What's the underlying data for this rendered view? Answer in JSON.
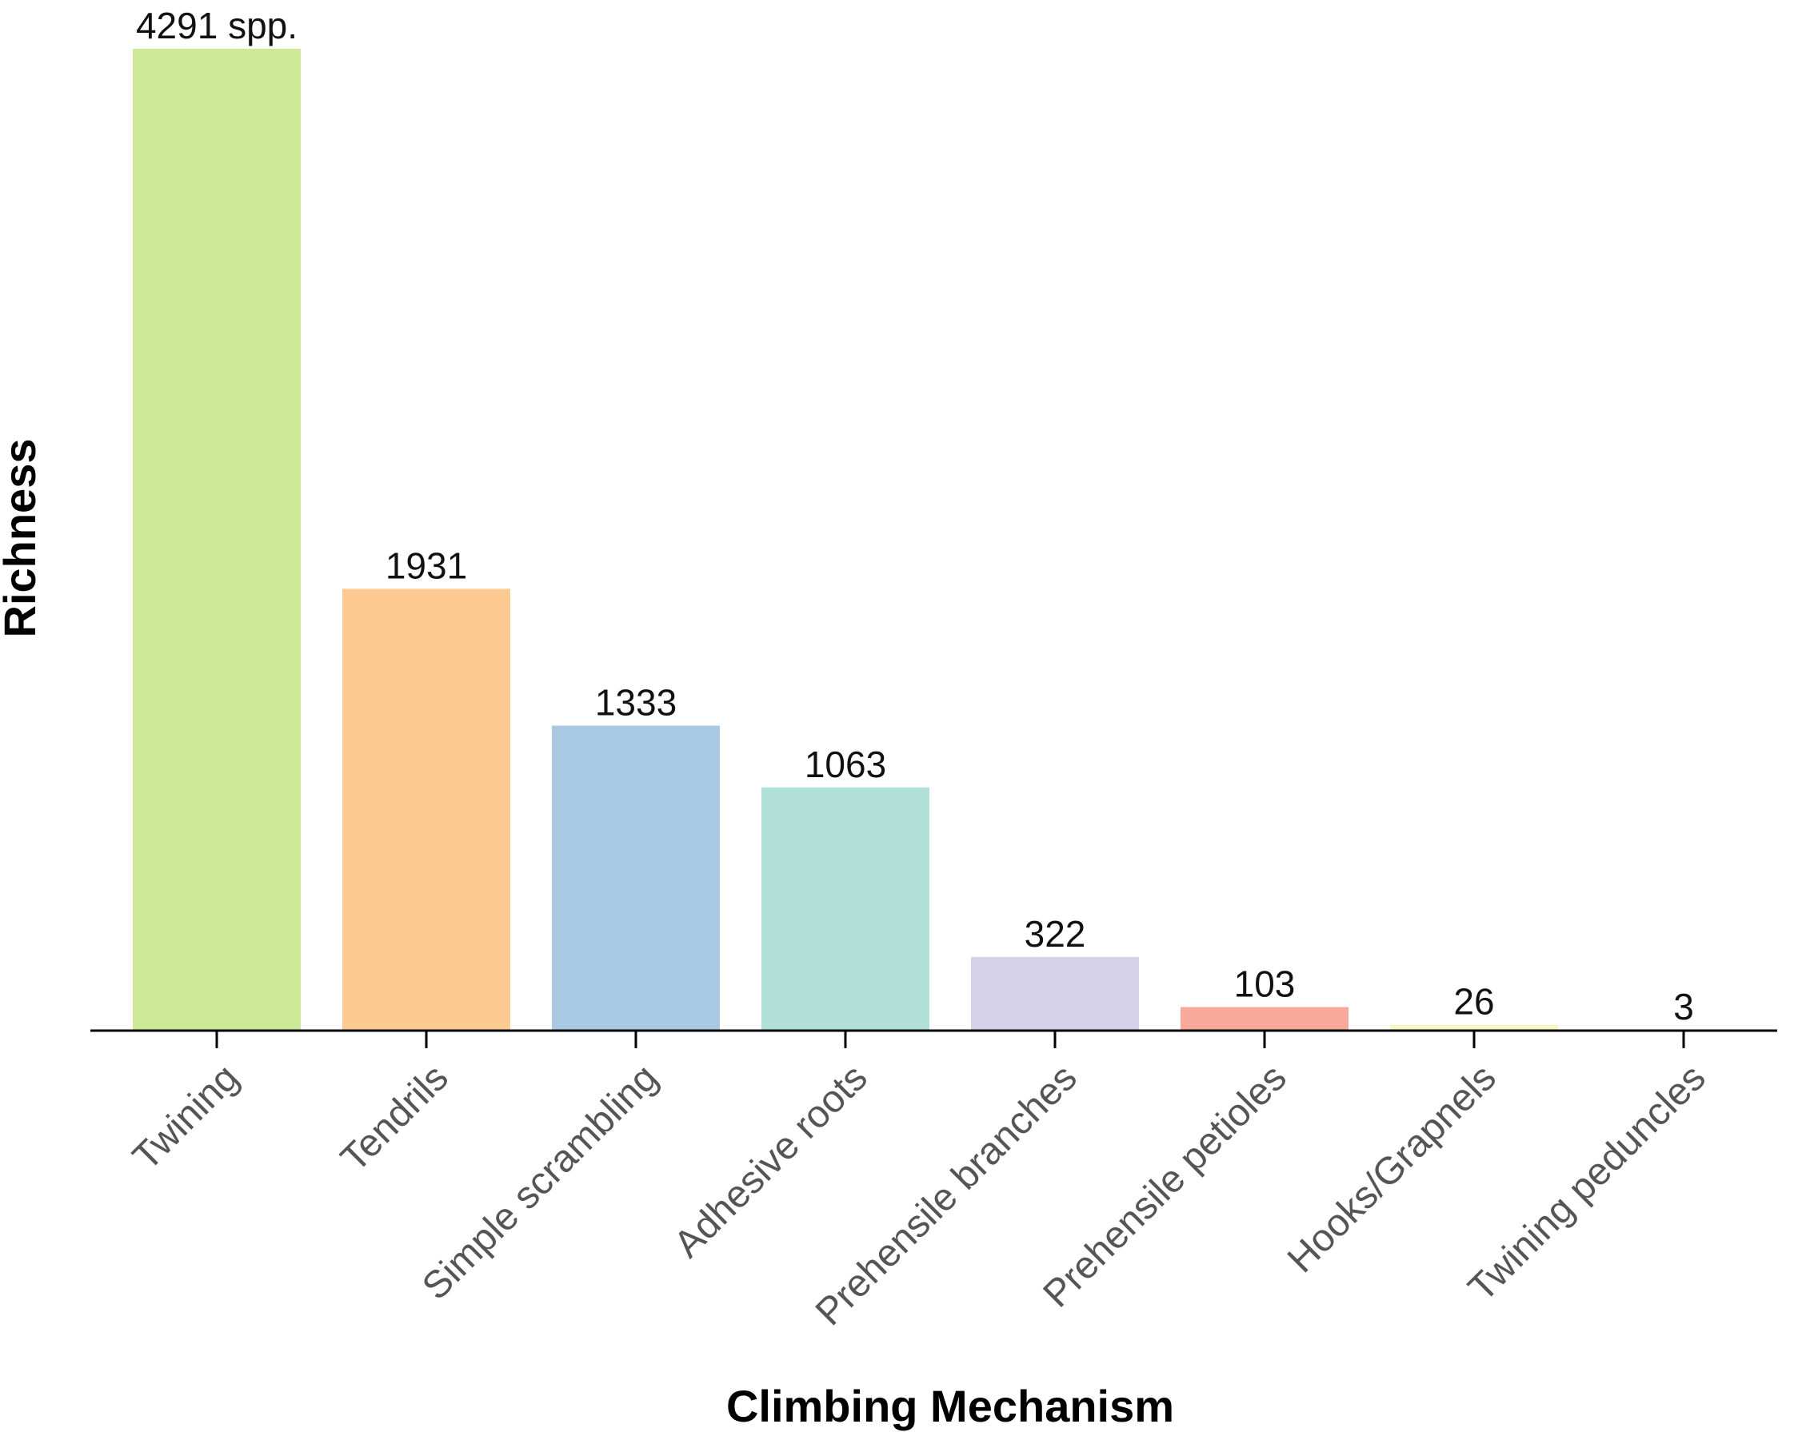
{
  "chart_data": {
    "type": "bar",
    "title": "",
    "xlabel": "Climbing Mechanism",
    "ylabel": "Richness",
    "categories": [
      "Twining",
      "Tendrils",
      "Simple scrambling",
      "Adhesive roots",
      "Prehensile branches",
      "Prehensile petioles",
      "Hooks/Grapnels",
      "Twining peduncles"
    ],
    "values": [
      4291,
      1931,
      1333,
      1063,
      322,
      103,
      26,
      3
    ],
    "value_labels": [
      "4291 spp.",
      "1931",
      "1333",
      "1063",
      "322",
      "103",
      "26",
      "3"
    ],
    "colors": [
      "#cde896",
      "#fdcb92",
      "#a9c9e2",
      "#b0e0d8",
      "#d5d1e8",
      "#f9a89c",
      "#f7f7c6",
      "#f7f7c6"
    ],
    "ylim": [
      0,
      4291
    ],
    "grid": false,
    "legend": "none"
  }
}
